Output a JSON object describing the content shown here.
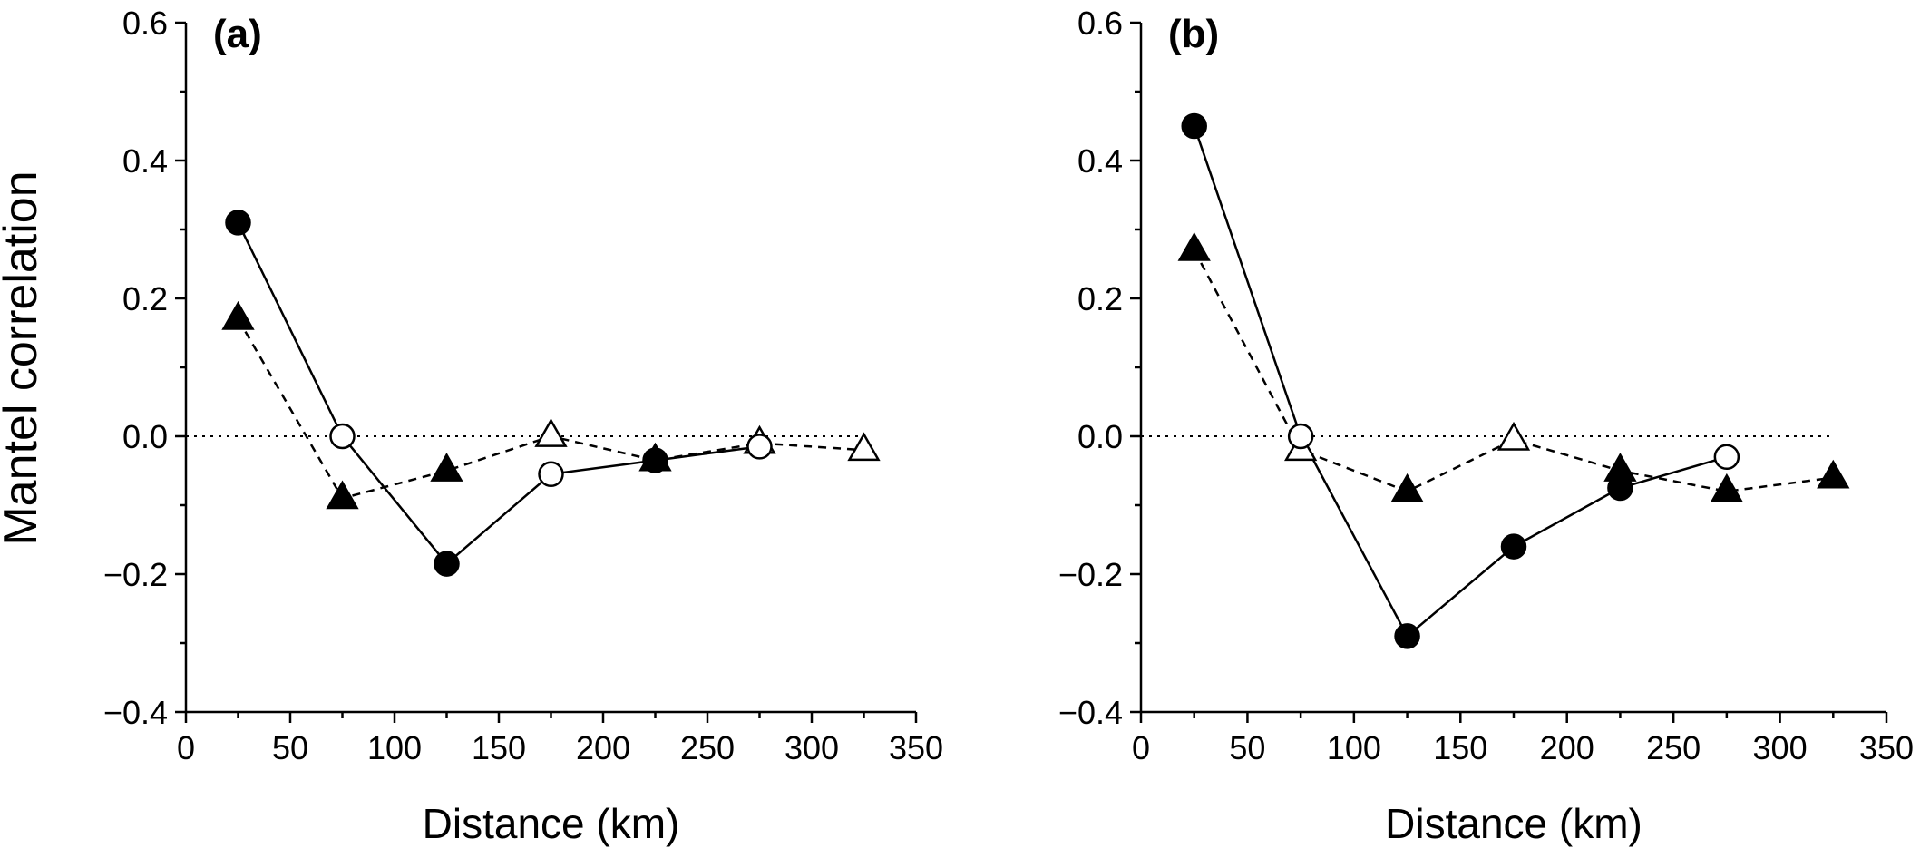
{
  "ylabel": "Mantel correlation",
  "chart_data": [
    {
      "type": "line",
      "panel_label": "(a)",
      "xlabel": "Distance (km)",
      "xlim": [
        0,
        350
      ],
      "ylim": [
        -0.4,
        0.6
      ],
      "xticks": [
        0,
        50,
        100,
        150,
        200,
        250,
        300,
        350
      ],
      "yticks": [
        -0.4,
        -0.2,
        0.0,
        0.2,
        0.4,
        0.6
      ],
      "ytick_labels": [
        "−0.4",
        "−0.2",
        "0.0",
        "0.2",
        "0.4",
        "0.6"
      ],
      "reference_line": 0,
      "series": [
        {
          "marker": "circle",
          "line": "solid",
          "x": [
            25,
            75,
            125,
            175,
            225,
            275
          ],
          "y": [
            0.31,
            0.0,
            -0.185,
            -0.055,
            -0.035,
            -0.015
          ],
          "filled": [
            true,
            false,
            true,
            false,
            true,
            false
          ]
        },
        {
          "marker": "triangle",
          "line": "dashed",
          "x": [
            25,
            75,
            125,
            175,
            225,
            275,
            325
          ],
          "y": [
            0.17,
            -0.09,
            -0.05,
            0.0,
            -0.035,
            -0.01,
            -0.02
          ],
          "filled": [
            true,
            true,
            true,
            false,
            true,
            false,
            false
          ]
        }
      ]
    },
    {
      "type": "line",
      "panel_label": "(b)",
      "xlabel": "Distance (km)",
      "xlim": [
        0,
        350
      ],
      "ylim": [
        -0.4,
        0.6
      ],
      "xticks": [
        0,
        50,
        100,
        150,
        200,
        250,
        300,
        350
      ],
      "yticks": [
        -0.4,
        -0.2,
        0.0,
        0.2,
        0.4,
        0.6
      ],
      "ytick_labels": [
        "−0.4",
        "−0.2",
        "0.0",
        "0.2",
        "0.4",
        "0.6"
      ],
      "reference_line": 0,
      "series": [
        {
          "marker": "circle",
          "line": "solid",
          "x": [
            25,
            75,
            125,
            175,
            225,
            275
          ],
          "y": [
            0.45,
            0.0,
            -0.29,
            -0.16,
            -0.075,
            -0.03
          ],
          "filled": [
            true,
            false,
            true,
            true,
            true,
            false
          ]
        },
        {
          "marker": "triangle",
          "line": "dashed",
          "x": [
            25,
            75,
            125,
            175,
            225,
            275,
            325
          ],
          "y": [
            0.27,
            -0.02,
            -0.08,
            -0.005,
            -0.05,
            -0.08,
            -0.06
          ],
          "filled": [
            true,
            false,
            true,
            false,
            true,
            true,
            true
          ]
        }
      ]
    }
  ]
}
